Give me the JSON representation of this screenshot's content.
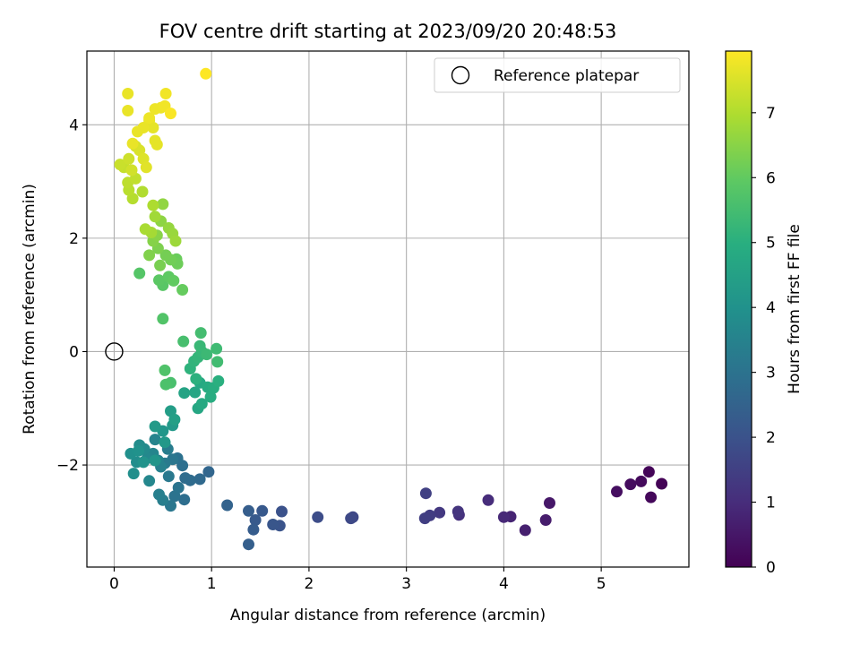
{
  "chart_data": {
    "type": "scatter",
    "title": "FOV centre drift starting at 2023/09/20 20:48:53",
    "xlabel": "Angular distance from reference (arcmin)",
    "ylabel": "Rotation from reference (arcmin)",
    "xlim": [
      -0.28,
      5.9
    ],
    "ylim": [
      -3.8,
      5.3
    ],
    "x_ticks": [
      0,
      1,
      2,
      3,
      4,
      5
    ],
    "y_ticks": [
      -2,
      0,
      2,
      4
    ],
    "grid": true,
    "colormap": "viridis",
    "colorbar": {
      "label": "Hours from first FF file",
      "range": [
        0,
        7.95
      ],
      "ticks": [
        0,
        1,
        2,
        3,
        4,
        5,
        6,
        7
      ]
    },
    "legend": {
      "position": "top-right",
      "entries": [
        "Reference platepar"
      ]
    },
    "reference_point": {
      "x": 0,
      "y": 0
    },
    "points": [
      [
        5.62,
        -2.33,
        0.05
      ],
      [
        5.49,
        -2.12,
        0.1
      ],
      [
        5.51,
        -2.57,
        0.15
      ],
      [
        5.41,
        -2.29,
        0.2
      ],
      [
        5.3,
        -2.34,
        0.25
      ],
      [
        5.16,
        -2.47,
        0.3
      ],
      [
        4.47,
        -2.67,
        0.5
      ],
      [
        4.43,
        -2.97,
        0.6
      ],
      [
        4.22,
        -3.15,
        0.7
      ],
      [
        4.07,
        -2.91,
        0.8
      ],
      [
        4.0,
        -2.92,
        0.9
      ],
      [
        3.84,
        -2.62,
        1.0
      ],
      [
        3.54,
        -2.88,
        1.1
      ],
      [
        3.53,
        -2.82,
        1.2
      ],
      [
        3.34,
        -2.84,
        1.3
      ],
      [
        3.24,
        -2.89,
        1.4
      ],
      [
        3.19,
        -2.94,
        1.45
      ],
      [
        3.2,
        -2.5,
        1.5
      ],
      [
        2.45,
        -2.92,
        1.7
      ],
      [
        2.43,
        -2.94,
        1.75
      ],
      [
        2.09,
        -2.92,
        1.85
      ],
      [
        1.72,
        -2.82,
        2.0
      ],
      [
        1.7,
        -3.07,
        2.05
      ],
      [
        1.63,
        -3.05,
        2.1
      ],
      [
        1.52,
        -2.81,
        2.2
      ],
      [
        1.45,
        -2.97,
        2.25
      ],
      [
        1.43,
        -3.14,
        2.3
      ],
      [
        1.38,
        -2.81,
        2.35
      ],
      [
        1.38,
        -3.4,
        2.4
      ],
      [
        1.16,
        -2.71,
        2.5
      ],
      [
        0.97,
        -2.12,
        2.6
      ],
      [
        0.88,
        -2.25,
        2.7
      ],
      [
        0.78,
        -2.27,
        2.75
      ],
      [
        0.73,
        -2.23,
        2.8
      ],
      [
        0.72,
        -2.61,
        2.85
      ],
      [
        0.7,
        -2.01,
        2.9
      ],
      [
        0.65,
        -1.88,
        2.95
      ],
      [
        0.62,
        -2.55,
        3.0
      ],
      [
        0.66,
        -2.4,
        3.05
      ],
      [
        0.6,
        -1.9,
        3.1
      ],
      [
        0.58,
        -2.72,
        3.15
      ],
      [
        0.56,
        -2.2,
        3.2
      ],
      [
        0.52,
        -1.97,
        3.25
      ],
      [
        0.55,
        -1.72,
        3.3
      ],
      [
        0.5,
        -2.62,
        3.35
      ],
      [
        0.46,
        -2.52,
        3.4
      ],
      [
        0.48,
        -2.03,
        3.45
      ],
      [
        0.45,
        -1.92,
        3.5
      ],
      [
        0.42,
        -1.55,
        3.55
      ],
      [
        0.4,
        -1.8,
        3.6
      ],
      [
        0.36,
        -2.28,
        3.65
      ],
      [
        0.34,
        -1.88,
        3.7
      ],
      [
        0.31,
        -1.72,
        3.75
      ],
      [
        0.26,
        -1.65,
        3.8
      ],
      [
        0.23,
        -1.95,
        3.85
      ],
      [
        0.2,
        -2.15,
        3.9
      ],
      [
        0.17,
        -1.8,
        3.95
      ],
      [
        0.25,
        -1.75,
        4.0
      ],
      [
        0.3,
        -1.95,
        4.05
      ],
      [
        0.42,
        -1.92,
        4.1
      ],
      [
        0.5,
        -1.4,
        4.15
      ],
      [
        0.52,
        -1.6,
        4.2
      ],
      [
        0.6,
        -1.3,
        4.25
      ],
      [
        0.42,
        -1.32,
        4.3
      ],
      [
        0.58,
        -1.05,
        4.4
      ],
      [
        0.62,
        -1.2,
        4.45
      ],
      [
        0.72,
        -0.73,
        4.6
      ],
      [
        0.83,
        -0.72,
        4.65
      ],
      [
        0.86,
        -1.0,
        4.7
      ],
      [
        0.88,
        -0.55,
        4.75
      ],
      [
        0.9,
        -0.92,
        4.8
      ],
      [
        0.96,
        -0.63,
        4.85
      ],
      [
        0.99,
        -0.8,
        4.9
      ],
      [
        1.02,
        -0.64,
        4.95
      ],
      [
        1.07,
        -0.52,
        5.0
      ],
      [
        0.84,
        -0.48,
        5.05
      ],
      [
        0.78,
        -0.3,
        5.1
      ],
      [
        0.82,
        -0.17,
        5.15
      ],
      [
        0.86,
        -0.1,
        5.2
      ],
      [
        0.9,
        0.0,
        5.25
      ],
      [
        0.88,
        0.1,
        5.3
      ],
      [
        0.95,
        -0.05,
        5.35
      ],
      [
        1.05,
        0.05,
        5.4
      ],
      [
        1.06,
        -0.18,
        5.45
      ],
      [
        0.89,
        0.33,
        5.5
      ],
      [
        0.71,
        0.18,
        5.55
      ],
      [
        0.58,
        -0.55,
        5.6
      ],
      [
        0.53,
        -0.58,
        5.65
      ],
      [
        0.52,
        -0.33,
        5.7
      ],
      [
        0.5,
        0.58,
        5.75
      ],
      [
        0.26,
        1.38,
        5.8
      ],
      [
        0.5,
        1.17,
        5.85
      ],
      [
        0.46,
        1.26,
        5.9
      ],
      [
        0.56,
        1.32,
        5.95
      ],
      [
        0.61,
        1.25,
        6.0
      ],
      [
        0.7,
        1.09,
        6.05
      ],
      [
        0.64,
        1.63,
        6.1
      ],
      [
        0.65,
        1.55,
        6.15
      ],
      [
        0.58,
        1.62,
        6.2
      ],
      [
        0.53,
        1.7,
        6.25
      ],
      [
        0.47,
        1.52,
        6.3
      ],
      [
        0.45,
        1.82,
        6.35
      ],
      [
        0.36,
        1.7,
        6.4
      ],
      [
        0.4,
        1.95,
        6.45
      ],
      [
        0.44,
        2.05,
        6.5
      ],
      [
        0.48,
        2.3,
        6.55
      ],
      [
        0.5,
        2.6,
        6.6
      ],
      [
        0.56,
        2.18,
        6.65
      ],
      [
        0.6,
        2.08,
        6.7
      ],
      [
        0.63,
        1.95,
        6.75
      ],
      [
        0.42,
        2.38,
        6.8
      ],
      [
        0.38,
        2.1,
        6.85
      ],
      [
        0.32,
        2.16,
        6.9
      ],
      [
        0.4,
        2.58,
        6.95
      ],
      [
        0.29,
        2.82,
        7.0
      ],
      [
        0.19,
        2.7,
        7.05
      ],
      [
        0.15,
        2.85,
        7.1
      ],
      [
        0.14,
        2.98,
        7.15
      ],
      [
        0.22,
        3.05,
        7.2
      ],
      [
        0.1,
        3.25,
        7.25
      ],
      [
        0.06,
        3.3,
        7.3
      ],
      [
        0.15,
        3.4,
        7.35
      ],
      [
        0.18,
        3.2,
        7.4
      ],
      [
        0.22,
        3.62,
        7.45
      ],
      [
        0.26,
        3.55,
        7.5
      ],
      [
        0.3,
        3.4,
        7.55
      ],
      [
        0.33,
        3.25,
        7.6
      ],
      [
        0.42,
        3.72,
        7.65
      ],
      [
        0.44,
        3.65,
        7.65
      ],
      [
        0.4,
        3.95,
        7.65
      ],
      [
        0.36,
        4.08,
        7.65
      ],
      [
        0.3,
        3.95,
        7.7
      ],
      [
        0.24,
        3.88,
        7.7
      ],
      [
        0.19,
        3.67,
        7.7
      ],
      [
        0.14,
        4.25,
        7.7
      ],
      [
        0.14,
        4.55,
        7.7
      ],
      [
        0.36,
        4.12,
        7.75
      ],
      [
        0.42,
        4.28,
        7.75
      ],
      [
        0.48,
        4.3,
        7.75
      ],
      [
        0.53,
        4.55,
        7.8
      ],
      [
        0.52,
        4.33,
        7.8
      ],
      [
        0.58,
        4.2,
        7.9
      ],
      [
        0.94,
        4.9,
        7.95
      ]
    ]
  }
}
